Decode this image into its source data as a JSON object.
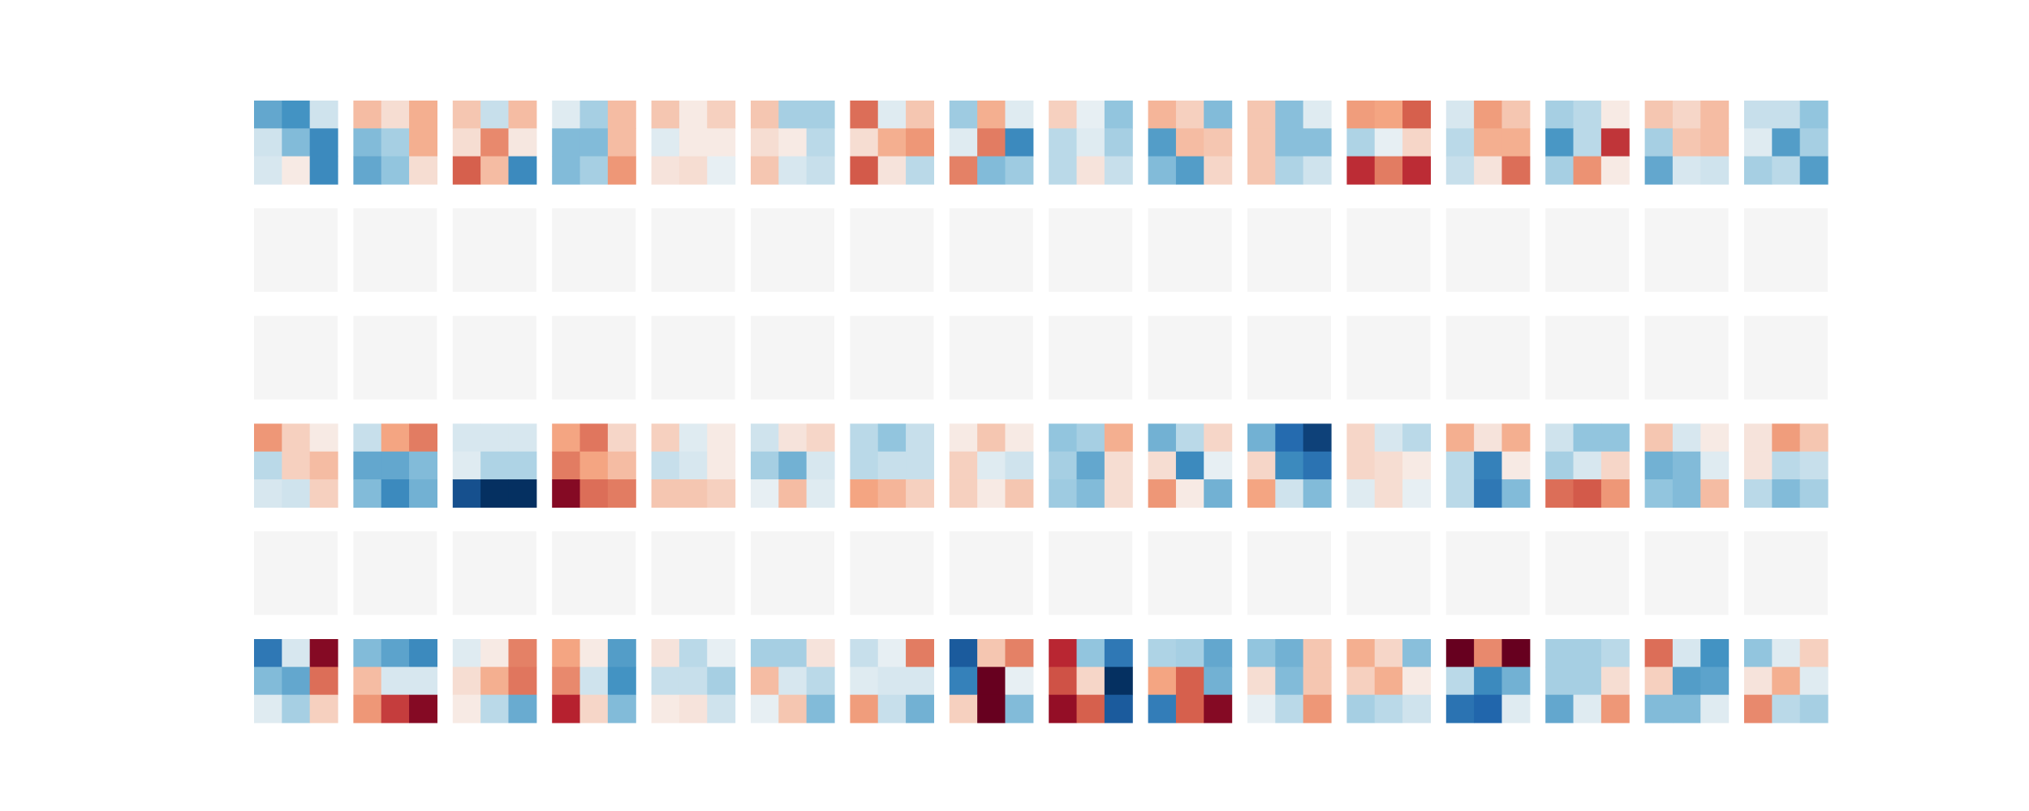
{
  "chart_data": {
    "type": "heatmap",
    "title": "",
    "xlabel": "",
    "ylabel": "",
    "colormap": "RdBu_r",
    "vmin": -1,
    "vmax": 1,
    "rows": 6,
    "cols": 16,
    "cell_shape": [
      3,
      3
    ],
    "empty_color": "#f5f5f5",
    "colorbar": false,
    "axes_visible": false,
    "kernels": [
      [
        [
          [
            -0.4,
            -0.5,
            -0.1
          ],
          [
            -0.1,
            -0.3,
            -0.55
          ],
          [
            -0.08,
            0.04,
            -0.55
          ]
        ],
        [
          [
            0.18,
            0.08,
            0.22
          ],
          [
            -0.3,
            -0.2,
            0.22
          ],
          [
            -0.4,
            -0.25,
            0.08
          ]
        ],
        [
          [
            0.15,
            -0.12,
            0.18
          ],
          [
            0.08,
            0.35,
            0.05
          ],
          [
            0.5,
            0.18,
            -0.55
          ]
        ],
        [
          [
            -0.06,
            -0.2,
            0.18
          ],
          [
            -0.3,
            -0.3,
            0.18
          ],
          [
            -0.3,
            -0.2,
            0.3
          ]
        ],
        [
          [
            0.15,
            0.04,
            0.12
          ],
          [
            -0.06,
            0.04,
            0.04
          ],
          [
            0.06,
            0.08,
            -0.04
          ]
        ],
        [
          [
            0.15,
            -0.2,
            -0.2
          ],
          [
            0.08,
            0.04,
            -0.15
          ],
          [
            0.15,
            -0.08,
            -0.12
          ]
        ],
        [
          [
            0.45,
            -0.06,
            0.15
          ],
          [
            0.08,
            0.22,
            0.3
          ],
          [
            0.52,
            0.06,
            -0.15
          ]
        ],
        [
          [
            -0.22,
            0.22,
            -0.06
          ],
          [
            -0.06,
            0.4,
            -0.55
          ],
          [
            0.38,
            -0.3,
            -0.22
          ]
        ],
        [
          [
            0.12,
            -0.04,
            -0.25
          ],
          [
            -0.15,
            -0.06,
            -0.2
          ],
          [
            -0.15,
            0.06,
            -0.12
          ]
        ],
        [
          [
            0.2,
            0.12,
            -0.3
          ],
          [
            -0.45,
            0.18,
            0.15
          ],
          [
            -0.3,
            -0.45,
            0.1
          ]
        ],
        [
          [
            0.15,
            -0.28,
            -0.06
          ],
          [
            0.15,
            -0.28,
            -0.28
          ],
          [
            0.15,
            -0.18,
            -0.1
          ]
        ],
        [
          [
            0.28,
            0.25,
            0.5
          ],
          [
            -0.18,
            -0.04,
            0.1
          ],
          [
            0.68,
            0.4,
            0.68
          ]
        ],
        [
          [
            -0.08,
            0.28,
            0.15
          ],
          [
            -0.15,
            0.22,
            0.22
          ],
          [
            -0.12,
            0.06,
            0.45
          ]
        ],
        [
          [
            -0.2,
            -0.15,
            0.04
          ],
          [
            -0.48,
            -0.15,
            0.65
          ],
          [
            -0.2,
            0.32,
            0.04
          ]
        ],
        [
          [
            0.15,
            0.1,
            0.18
          ],
          [
            -0.2,
            0.15,
            0.18
          ],
          [
            -0.4,
            -0.08,
            -0.1
          ]
        ],
        [
          [
            -0.12,
            -0.12,
            -0.25
          ],
          [
            -0.06,
            -0.45,
            -0.2
          ],
          [
            -0.2,
            -0.15,
            -0.45
          ]
        ]
      ],
      null,
      null,
      [
        [
          [
            0.3,
            0.12,
            0.04
          ],
          [
            -0.15,
            0.12,
            0.18
          ],
          [
            -0.08,
            -0.1,
            0.12
          ]
        ],
        [
          [
            -0.12,
            0.25,
            0.4
          ],
          [
            -0.4,
            -0.4,
            -0.3
          ],
          [
            -0.3,
            -0.55,
            -0.35
          ]
        ],
        [
          [
            -0.08,
            -0.08,
            -0.08
          ],
          [
            -0.06,
            -0.18,
            -0.18
          ],
          [
            -0.85,
            -1.0,
            -1.0
          ]
        ],
        [
          [
            0.25,
            0.42,
            0.1
          ],
          [
            0.4,
            0.25,
            0.18
          ],
          [
            0.9,
            0.45,
            0.4
          ]
        ],
        [
          [
            0.12,
            -0.06,
            0.04
          ],
          [
            -0.12,
            -0.08,
            0.04
          ],
          [
            0.15,
            0.15,
            0.12
          ]
        ],
        [
          [
            -0.1,
            0.06,
            0.1
          ],
          [
            -0.2,
            -0.35,
            -0.08
          ],
          [
            -0.04,
            0.18,
            -0.06
          ]
        ],
        [
          [
            -0.15,
            -0.25,
            -0.12
          ],
          [
            -0.15,
            -0.12,
            -0.12
          ],
          [
            0.25,
            0.2,
            0.12
          ]
        ],
        [
          [
            0.04,
            0.15,
            0.04
          ],
          [
            0.12,
            -0.06,
            -0.1
          ],
          [
            0.12,
            0.04,
            0.15
          ]
        ],
        [
          [
            -0.25,
            -0.2,
            0.22
          ],
          [
            -0.2,
            -0.4,
            0.08
          ],
          [
            -0.22,
            -0.3,
            0.08
          ]
        ],
        [
          [
            -0.35,
            -0.15,
            0.1
          ],
          [
            0.08,
            -0.55,
            -0.04
          ],
          [
            0.3,
            0.04,
            -0.35
          ]
        ],
        [
          [
            -0.35,
            -0.72,
            -0.92
          ],
          [
            0.1,
            -0.55,
            -0.68
          ],
          [
            0.25,
            -0.1,
            -0.3
          ]
        ],
        [
          [
            0.1,
            -0.08,
            -0.15
          ],
          [
            0.1,
            0.08,
            0.04
          ],
          [
            -0.06,
            0.08,
            -0.04
          ]
        ],
        [
          [
            0.22,
            0.06,
            0.22
          ],
          [
            -0.15,
            -0.6,
            0.04
          ],
          [
            -0.15,
            -0.65,
            -0.3
          ]
        ],
        [
          [
            -0.1,
            -0.25,
            -0.25
          ],
          [
            -0.2,
            -0.08,
            0.1
          ],
          [
            0.45,
            0.52,
            0.3
          ]
        ],
        [
          [
            0.15,
            -0.08,
            0.04
          ],
          [
            -0.35,
            -0.3,
            -0.06
          ],
          [
            -0.25,
            -0.3,
            0.18
          ]
        ],
        [
          [
            0.06,
            0.28,
            0.15
          ],
          [
            0.06,
            -0.15,
            -0.12
          ],
          [
            -0.15,
            -0.3,
            -0.2
          ]
        ]
      ],
      null,
      [
        [
          [
            -0.65,
            -0.08,
            0.9
          ],
          [
            -0.3,
            -0.4,
            0.45
          ],
          [
            -0.06,
            -0.2,
            0.12
          ]
        ],
        [
          [
            -0.3,
            -0.42,
            -0.55
          ],
          [
            0.18,
            -0.08,
            -0.08
          ],
          [
            0.3,
            0.62,
            0.9
          ]
        ],
        [
          [
            -0.06,
            0.04,
            0.38
          ],
          [
            0.08,
            0.22,
            0.42
          ],
          [
            0.04,
            -0.15,
            -0.38
          ]
        ],
        [
          [
            0.25,
            0.04,
            -0.45
          ],
          [
            0.35,
            -0.1,
            -0.5
          ],
          [
            0.72,
            0.1,
            -0.3
          ]
        ],
        [
          [
            0.06,
            -0.15,
            -0.04
          ],
          [
            -0.12,
            -0.12,
            -0.2
          ],
          [
            0.04,
            0.06,
            -0.1
          ]
        ],
        [
          [
            -0.2,
            -0.2,
            0.06
          ],
          [
            0.18,
            -0.08,
            -0.15
          ],
          [
            -0.04,
            0.15,
            -0.3
          ]
        ],
        [
          [
            -0.12,
            -0.04,
            0.4
          ],
          [
            -0.06,
            -0.08,
            -0.08
          ],
          [
            0.28,
            -0.12,
            -0.35
          ]
        ],
        [
          [
            -0.8,
            0.15,
            0.38
          ],
          [
            -0.6,
            1.0,
            -0.04
          ],
          [
            0.12,
            1.0,
            -0.3
          ]
        ],
        [
          [
            0.7,
            -0.25,
            -0.65
          ],
          [
            0.55,
            0.1,
            -1.0
          ],
          [
            0.85,
            0.5,
            -0.8
          ]
        ],
        [
          [
            -0.18,
            -0.2,
            -0.4
          ],
          [
            0.25,
            0.5,
            -0.35
          ],
          [
            -0.62,
            0.5,
            0.9
          ]
        ],
        [
          [
            -0.25,
            -0.35,
            0.15
          ],
          [
            0.08,
            -0.3,
            0.15
          ],
          [
            -0.04,
            -0.15,
            0.3
          ]
        ],
        [
          [
            0.22,
            0.1,
            -0.28
          ],
          [
            0.12,
            0.22,
            0.04
          ],
          [
            -0.2,
            -0.15,
            -0.1
          ]
        ],
        [
          [
            1.0,
            0.35,
            1.0
          ],
          [
            -0.15,
            -0.55,
            -0.35
          ],
          [
            -0.68,
            -0.75,
            -0.06
          ]
        ],
        [
          [
            -0.2,
            -0.2,
            -0.15
          ],
          [
            -0.2,
            -0.2,
            0.08
          ],
          [
            -0.4,
            -0.06,
            0.3
          ]
        ],
        [
          [
            0.45,
            -0.08,
            -0.5
          ],
          [
            0.12,
            -0.45,
            -0.42
          ],
          [
            -0.3,
            -0.3,
            -0.06
          ]
        ],
        [
          [
            -0.25,
            -0.06,
            0.12
          ],
          [
            0.06,
            0.22,
            -0.06
          ],
          [
            0.35,
            -0.15,
            -0.2
          ]
        ]
      ]
    ]
  }
}
